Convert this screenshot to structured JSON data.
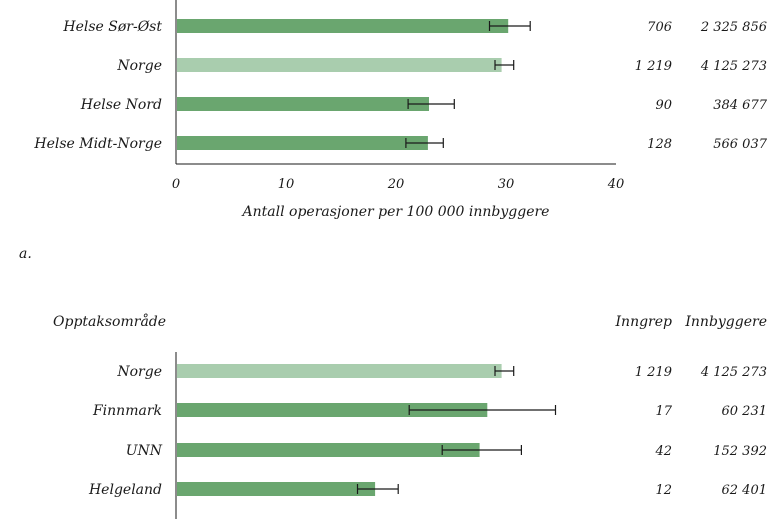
{
  "chart_data": [
    {
      "type": "bar",
      "orientation": "horizontal",
      "panel_label": "a.",
      "title": "",
      "xlabel": "Antall operasjoner per 100 000 innbyggere",
      "ylabel": "",
      "xlim": [
        0,
        40
      ],
      "xticks": [
        0,
        10,
        20,
        30,
        40
      ],
      "categories": [
        "Helse Sør-Øst",
        "Norge",
        "Helse Nord",
        "Helse Midt-Norge"
      ],
      "values": [
        30.2,
        29.6,
        23.0,
        22.9
      ],
      "error_low": [
        28.5,
        29.0,
        21.1,
        20.9
      ],
      "error_high": [
        32.2,
        30.7,
        25.3,
        24.3
      ],
      "highlight": [
        "",
        "Norge",
        "",
        ""
      ],
      "table_columns": [
        {
          "key": "inngrep",
          "header": "",
          "values": [
            "706",
            "1 219",
            "90",
            "128"
          ]
        },
        {
          "key": "innbyggere",
          "header": "",
          "values": [
            "2 325 856",
            "4 125 273",
            "384 677",
            "566 037"
          ]
        }
      ],
      "colors": {
        "bar": "#6aa66f",
        "highlight": "#a9cdae",
        "errorbar": "#1a1a1a"
      },
      "grid": false
    },
    {
      "type": "bar",
      "orientation": "horizontal",
      "title": "",
      "category_header": "Opptaksområde",
      "xlabel": "",
      "ylabel": "",
      "xlim": [
        0,
        40
      ],
      "categories": [
        "Norge",
        "Finnmark",
        "UNN",
        "Helgeland"
      ],
      "values": [
        29.6,
        28.3,
        27.6,
        18.1
      ],
      "error_low": [
        29.0,
        21.2,
        24.2,
        16.5
      ],
      "error_high": [
        30.7,
        34.5,
        31.4,
        20.2
      ],
      "highlight": [
        "Norge",
        "",
        "",
        ""
      ],
      "table_columns": [
        {
          "key": "inngrep",
          "header": "Inngrep",
          "values": [
            "1 219",
            "17",
            "42",
            "12"
          ]
        },
        {
          "key": "innbyggere",
          "header": "Innbyggere",
          "values": [
            "4 125 273",
            "60 231",
            "152 392",
            "62 401"
          ]
        }
      ],
      "colors": {
        "bar": "#6aa66f",
        "highlight": "#a9cdae",
        "errorbar": "#1a1a1a"
      },
      "grid": false
    }
  ]
}
